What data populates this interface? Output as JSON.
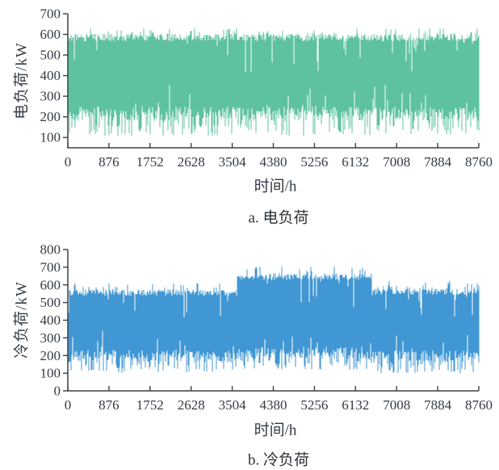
{
  "figure": {
    "background": "#ffffff",
    "axis_color": "#3a4149",
    "text_color": "#333b44"
  },
  "chart_data": [
    {
      "id": "electric-load",
      "type": "line",
      "series_name": "电负荷",
      "caption": "a. 电负荷",
      "xlabel": "时间/h",
      "ylabel": "电负荷/kW",
      "color": "#5ec2a1",
      "xlim": [
        0,
        8760
      ],
      "ylim": [
        50,
        700
      ],
      "xticks": [
        0,
        876,
        1752,
        2628,
        3504,
        4380,
        5256,
        6132,
        7008,
        7884,
        8760
      ],
      "yticks": [
        100,
        200,
        300,
        400,
        500,
        600,
        700
      ],
      "n_points": 8760,
      "grid": false,
      "legend": "none",
      "envelope_segments": [
        {
          "x_range": [
            0,
            8760
          ],
          "core_band": [
            215,
            585
          ],
          "peak_max": 628,
          "dip_min": 108
        }
      ],
      "random_seed": 11
    },
    {
      "id": "cooling-load",
      "type": "line",
      "series_name": "冷负荷",
      "caption": "b. 冷负荷",
      "xlabel": "时间/h",
      "ylabel": "冷负荷/kW",
      "color": "#4197d3",
      "xlim": [
        0,
        8760
      ],
      "ylim": [
        0,
        800
      ],
      "xticks": [
        0,
        876,
        1752,
        2628,
        3504,
        4380,
        5256,
        6132,
        7008,
        7884,
        8760
      ],
      "yticks": [
        0,
        100,
        200,
        300,
        400,
        500,
        600,
        700,
        800
      ],
      "n_points": 8760,
      "grid": false,
      "legend": "none",
      "envelope_segments": [
        {
          "x_range": [
            0,
            3600
          ],
          "core_band": [
            195,
            555
          ],
          "peak_max": 608,
          "dip_min": 98
        },
        {
          "x_range": [
            3600,
            6500
          ],
          "core_band": [
            215,
            645
          ],
          "peak_max": 703,
          "dip_min": 120
        },
        {
          "x_range": [
            6500,
            8760
          ],
          "core_band": [
            195,
            560
          ],
          "peak_max": 622,
          "dip_min": 98
        }
      ],
      "random_seed": 29
    }
  ]
}
